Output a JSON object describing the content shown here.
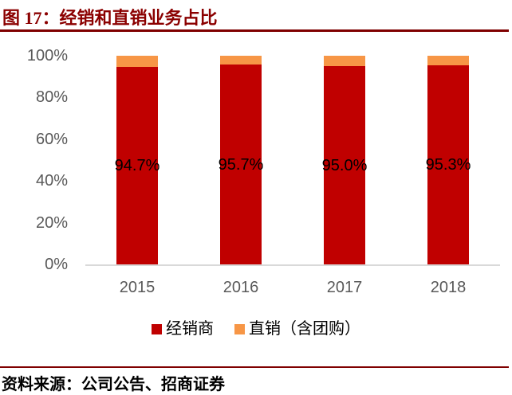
{
  "title": "图 17：经销和直销业务占比",
  "footer": {
    "source": "资料来源：公司公告、招商证券"
  },
  "colors": {
    "accent": "#8B0000",
    "rule": "#7F0000",
    "bar_red": "#C00000",
    "bar_orange": "#F79646",
    "axis_text": "#595959",
    "axis_line": "#D9D9D9",
    "data_label": "#000000"
  },
  "chart_data": {
    "type": "bar",
    "stacked": true,
    "percent_stacked": true,
    "title": "经销和直销业务占比",
    "categories": [
      "2015",
      "2016",
      "2017",
      "2018"
    ],
    "series": [
      {
        "name": "经销商",
        "color_key": "bar_red",
        "values": [
          94.7,
          95.7,
          95.0,
          95.3
        ],
        "labels": [
          "94.7%",
          "95.7%",
          "95.0%",
          "95.3%"
        ]
      },
      {
        "name": "直销（含团购）",
        "color_key": "bar_orange",
        "values": [
          5.3,
          4.3,
          5.0,
          4.7
        ],
        "labels": null
      }
    ],
    "ylim": [
      0,
      100
    ],
    "yticks": [
      {
        "value": 0,
        "label": "0%"
      },
      {
        "value": 20,
        "label": "20%"
      },
      {
        "value": 40,
        "label": "40%"
      },
      {
        "value": 60,
        "label": "60%"
      },
      {
        "value": 80,
        "label": "80%"
      },
      {
        "value": 100,
        "label": "100%"
      }
    ],
    "grid": false,
    "legend_position": "bottom"
  }
}
